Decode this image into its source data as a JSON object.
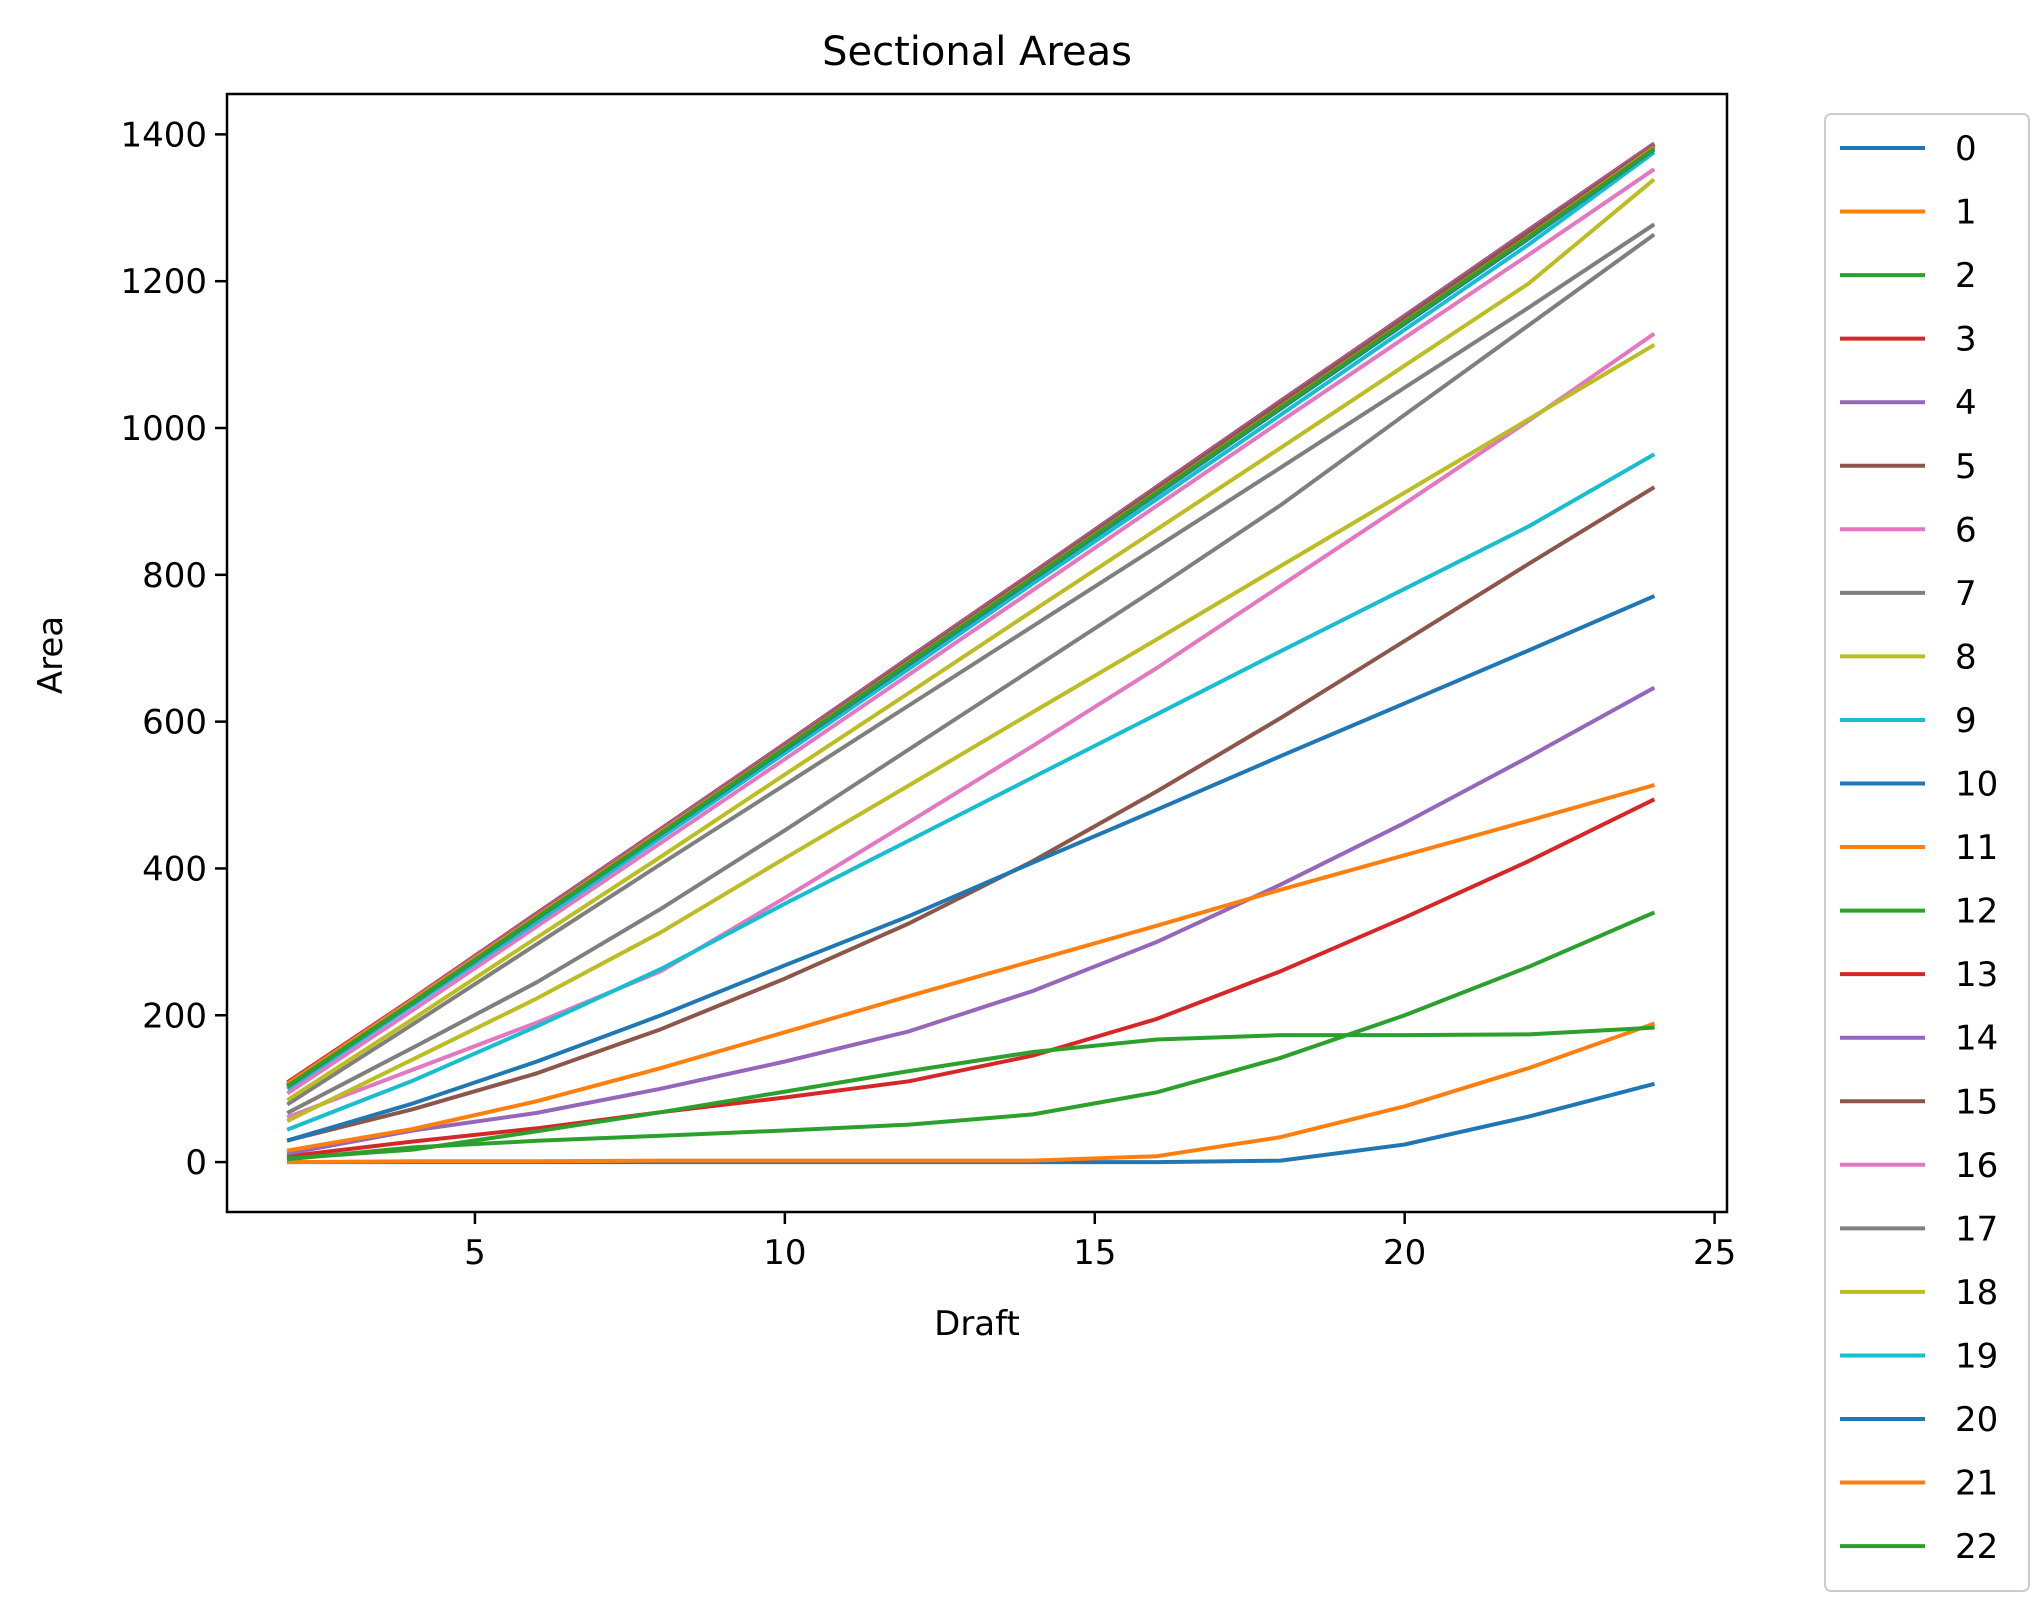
{
  "chart_data": {
    "type": "line",
    "title": "Sectional Areas",
    "xlabel": "Draft",
    "ylabel": "Area",
    "xlim": [
      1,
      25.2
    ],
    "ylim": [
      -68,
      1455
    ],
    "xticks": [
      5,
      10,
      15,
      20,
      25
    ],
    "yticks": [
      0,
      200,
      400,
      600,
      800,
      1000,
      1200,
      1400
    ],
    "grid": false,
    "legend_position": "outside-right",
    "x": [
      2,
      4,
      6,
      8,
      10,
      12,
      14,
      16,
      18,
      20,
      22,
      24
    ],
    "series": [
      {
        "name": "0",
        "color": "#1f77b4",
        "values": [
          0,
          0,
          0,
          0,
          0,
          0,
          0,
          0,
          2,
          24,
          62,
          106
        ]
      },
      {
        "name": "1",
        "color": "#ff7f0e",
        "values": [
          0,
          1,
          1,
          2,
          2,
          2,
          2,
          8,
          34,
          76,
          128,
          188
        ]
      },
      {
        "name": "2",
        "color": "#2ca02c",
        "values": [
          4,
          20,
          29,
          36,
          43,
          51,
          65,
          95,
          142,
          200,
          266,
          339
        ]
      },
      {
        "name": "3",
        "color": "#d62728",
        "values": [
          8,
          28,
          46,
          68,
          88,
          110,
          145,
          195,
          260,
          333,
          410,
          493
        ]
      },
      {
        "name": "4",
        "color": "#9467bd",
        "values": [
          12,
          43,
          67,
          100,
          137,
          178,
          233,
          300,
          378,
          462,
          552,
          645
        ]
      },
      {
        "name": "5",
        "color": "#8c564b",
        "values": [
          30,
          72,
          121,
          181,
          250,
          325,
          410,
          505,
          605,
          710,
          815,
          918
        ]
      },
      {
        "name": "6",
        "color": "#e377c2",
        "values": [
          62,
          126,
          190,
          260,
          360,
          463,
          567,
          673,
          785,
          897,
          1010,
          1127
        ]
      },
      {
        "name": "7",
        "color": "#7f7f7f",
        "values": [
          68,
          156,
          245,
          345,
          452,
          562,
          672,
          782,
          895,
          1018,
          1140,
          1262
        ]
      },
      {
        "name": "8",
        "color": "#bcbd22",
        "values": [
          57,
          140,
          223,
          313,
          414,
          513,
          613,
          712,
          812,
          912,
          1012,
          1112
        ]
      },
      {
        "name": "9",
        "color": "#17becf",
        "values": [
          45,
          111,
          185,
          263,
          352,
          438,
          524,
          610,
          696,
          781,
          866,
          963
        ]
      },
      {
        "name": "10",
        "color": "#1f77b4",
        "values": [
          30,
          80,
          137,
          200,
          268,
          335,
          408,
          480,
          553,
          625,
          697,
          770
        ]
      },
      {
        "name": "11",
        "color": "#ff7f0e",
        "values": [
          16,
          45,
          83,
          128,
          177,
          226,
          274,
          322,
          371,
          418,
          465,
          513
        ]
      },
      {
        "name": "12",
        "color": "#2ca02c",
        "values": [
          5,
          17,
          42,
          68,
          96,
          124,
          150,
          167,
          173,
          173,
          174,
          183
        ]
      },
      {
        "name": "13",
        "color": "#d62728",
        "values": [
          110,
          223,
          339,
          454,
          570,
          687,
          803,
          920,
          1037,
          1153,
          1270,
          1386
        ]
      },
      {
        "name": "14",
        "color": "#9467bd",
        "values": [
          108,
          222,
          338,
          453,
          569,
          686,
          802,
          919,
          1036,
          1152,
          1269,
          1385
        ]
      },
      {
        "name": "15",
        "color": "#8c564b",
        "values": [
          106,
          220,
          336,
          451,
          567,
          684,
          800,
          917,
          1034,
          1150,
          1267,
          1383
        ]
      },
      {
        "name": "16",
        "color": "#e377c2",
        "values": [
          95,
          207,
          321,
          435,
          549,
          664,
          779,
          894,
          1009,
          1123,
          1236,
          1351
        ]
      },
      {
        "name": "17",
        "color": "#7f7f7f",
        "values": [
          80,
          188,
          297,
          406,
          514,
          622,
          730,
          838,
          946,
          1055,
          1164,
          1276
        ]
      },
      {
        "name": "18",
        "color": "#bcbd22",
        "values": [
          86,
          195,
          306,
          416,
          528,
          639,
          751,
          862,
          973,
          1085,
          1197,
          1337
        ]
      },
      {
        "name": "19",
        "color": "#17becf",
        "values": [
          101,
          214,
          327,
          442,
          557,
          672,
          788,
          903,
          1018,
          1134,
          1250,
          1374
        ]
      },
      {
        "name": "20",
        "color": "#1f77b4",
        "values": [
          104,
          217,
          332,
          447,
          562,
          678,
          794,
          910,
          1026,
          1142,
          1258,
          1378
        ]
      },
      {
        "name": "21",
        "color": "#ff7f0e",
        "values": [
          108,
          221,
          335,
          450,
          565,
          681,
          797,
          913,
          1029,
          1145,
          1261,
          1381
        ]
      },
      {
        "name": "22",
        "color": "#2ca02c",
        "values": [
          105,
          218,
          333,
          448,
          564,
          680,
          796,
          912,
          1028,
          1144,
          1260,
          1379
        ]
      }
    ]
  }
}
